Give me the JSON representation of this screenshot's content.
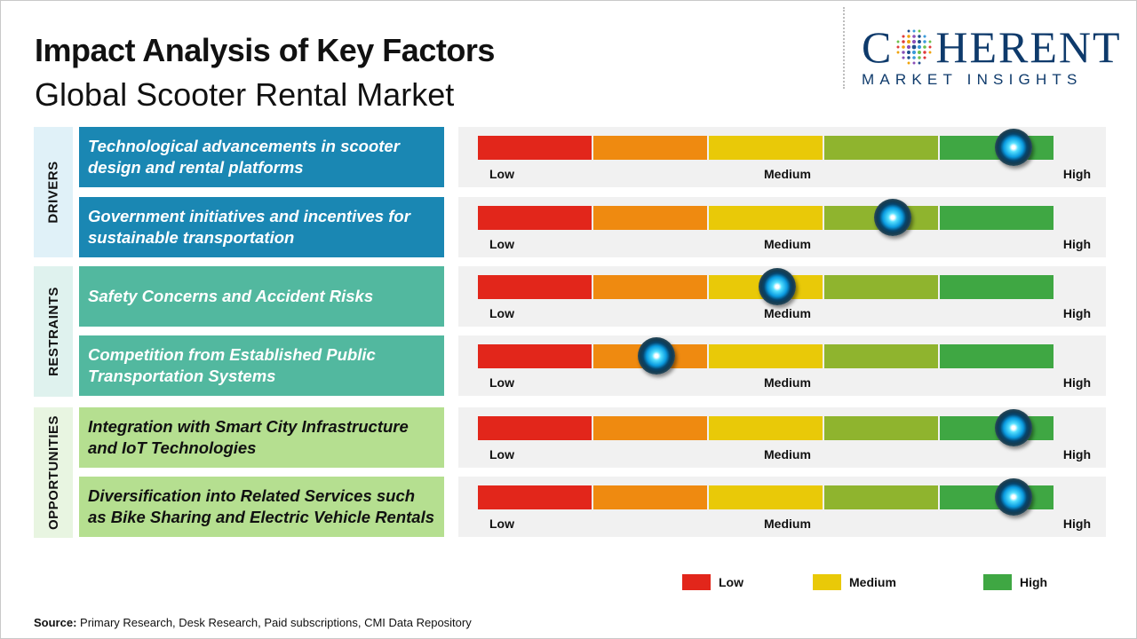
{
  "header": {
    "title": "Impact Analysis of Key Factors",
    "subtitle": "Global Scooter Rental Market"
  },
  "logo": {
    "text_before": "C",
    "text_after": "HERENT",
    "subline": "MARKET INSIGHTS",
    "color": "#0e3a6b"
  },
  "colors": {
    "scale": [
      "#e2261b",
      "#ef8a10",
      "#e9c908",
      "#8fb42e",
      "#3fa743"
    ],
    "drivers": "#1a87b3",
    "restraints": "#52b89f",
    "opportunities": "#b5df90"
  },
  "chart_data": {
    "type": "gauge-bars",
    "title": "Impact Analysis of Key Factors",
    "subtitle": "Global Scooter Rental Market",
    "scale_labels": [
      "Low",
      "Medium",
      "High"
    ],
    "groups": [
      {
        "name": "DRIVERS",
        "factors": [
          {
            "label": "Technological advancements in scooter design and rental platforms",
            "impact": 0.93
          },
          {
            "label": "Government initiatives and incentives for sustainable transportation",
            "impact": 0.72
          }
        ]
      },
      {
        "name": "RESTRAINTS",
        "factors": [
          {
            "label": "Safety Concerns and Accident Risks",
            "impact": 0.52
          },
          {
            "label": "Competition from Established Public Transportation Systems",
            "impact": 0.31
          }
        ]
      },
      {
        "name": "OPPORTUNITIES",
        "factors": [
          {
            "label": "Integration with Smart City Infrastructure and IoT Technologies",
            "impact": 0.93
          },
          {
            "label": "Diversification into Related Services such as Bike Sharing and Electric Vehicle Rentals",
            "impact": 0.93
          }
        ]
      }
    ],
    "legend": [
      {
        "label": "Low",
        "color": "#e2261b"
      },
      {
        "label": "Medium",
        "color": "#e9c908"
      },
      {
        "label": "High",
        "color": "#3fa743"
      }
    ]
  },
  "footer": {
    "source_label": "Source:",
    "source_text": " Primary Research, Desk Research, Paid subscriptions, CMI Data Repository"
  }
}
